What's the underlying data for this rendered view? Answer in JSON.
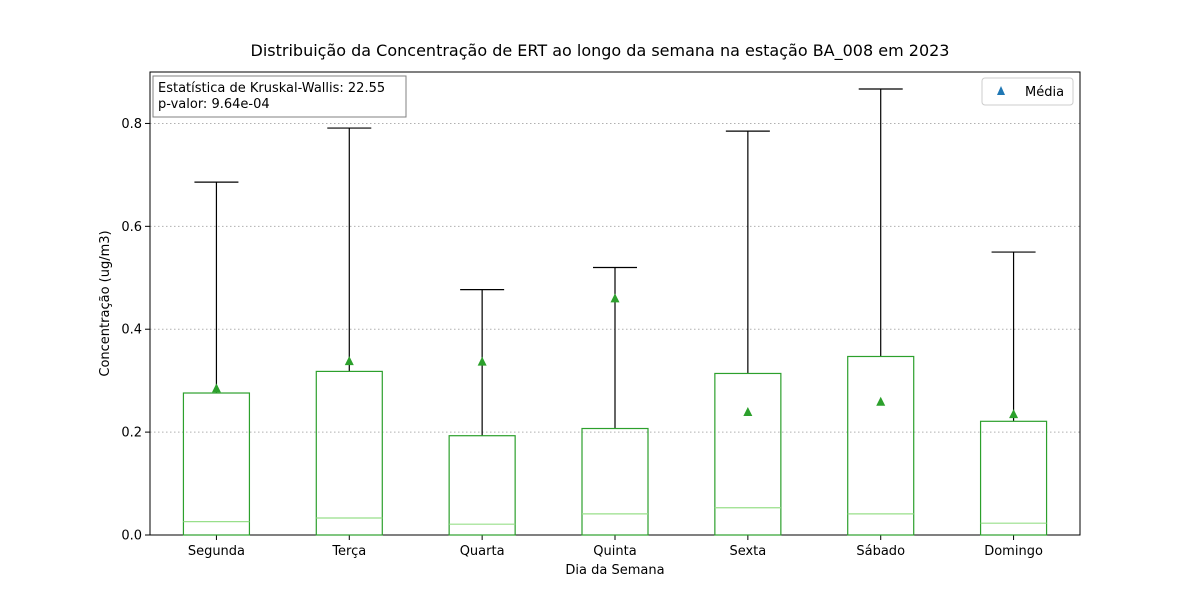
{
  "chart_data": {
    "type": "box",
    "title": "Distribuição da Concentração de ERT ao longo da semana na estação BA_008 em 2023",
    "xlabel": "Dia da Semana",
    "ylabel": "Concentração (ug/m3)",
    "ylim": [
      0,
      0.9
    ],
    "yticks": [
      0.0,
      0.2,
      0.4,
      0.6,
      0.8
    ],
    "ytick_labels": [
      "0.0",
      "0.2",
      "0.4",
      "0.6",
      "0.8"
    ],
    "grid": "horizontal-dotted",
    "categories": [
      "Segunda",
      "Terça",
      "Quarta",
      "Quinta",
      "Sexta",
      "Sábado",
      "Domingo"
    ],
    "boxes": [
      {
        "q1": 0.0,
        "median": 0.026,
        "q3": 0.276,
        "whisker_low": 0.0,
        "whisker_high": 0.686,
        "mean": 0.285
      },
      {
        "q1": 0.0,
        "median": 0.033,
        "q3": 0.318,
        "whisker_low": 0.0,
        "whisker_high": 0.791,
        "mean": 0.338
      },
      {
        "q1": 0.0,
        "median": 0.021,
        "q3": 0.193,
        "whisker_low": 0.0,
        "whisker_high": 0.477,
        "mean": 0.337
      },
      {
        "q1": 0.0,
        "median": 0.041,
        "q3": 0.207,
        "whisker_low": 0.0,
        "whisker_high": 0.52,
        "mean": 0.46
      },
      {
        "q1": 0.0,
        "median": 0.053,
        "q3": 0.314,
        "whisker_low": 0.0,
        "whisker_high": 0.785,
        "mean": 0.239
      },
      {
        "q1": 0.0,
        "median": 0.041,
        "q3": 0.347,
        "whisker_low": 0.0,
        "whisker_high": 0.867,
        "mean": 0.259
      },
      {
        "q1": 0.0,
        "median": 0.023,
        "q3": 0.221,
        "whisker_low": 0.0,
        "whisker_high": 0.55,
        "mean": 0.235
      }
    ],
    "annotation": [
      "Estatística de Kruskal-Wallis: 22.55",
      "p-valor: 9.64e-04"
    ],
    "legend": {
      "label": "Média",
      "placement": "top-right",
      "marker_color": "#1f77b4"
    },
    "colors": {
      "box": "#2ca02c",
      "median": "#98df8a",
      "mean": "#2ca02c",
      "whisker": "#000000",
      "grid": "#b0b0b0"
    }
  }
}
